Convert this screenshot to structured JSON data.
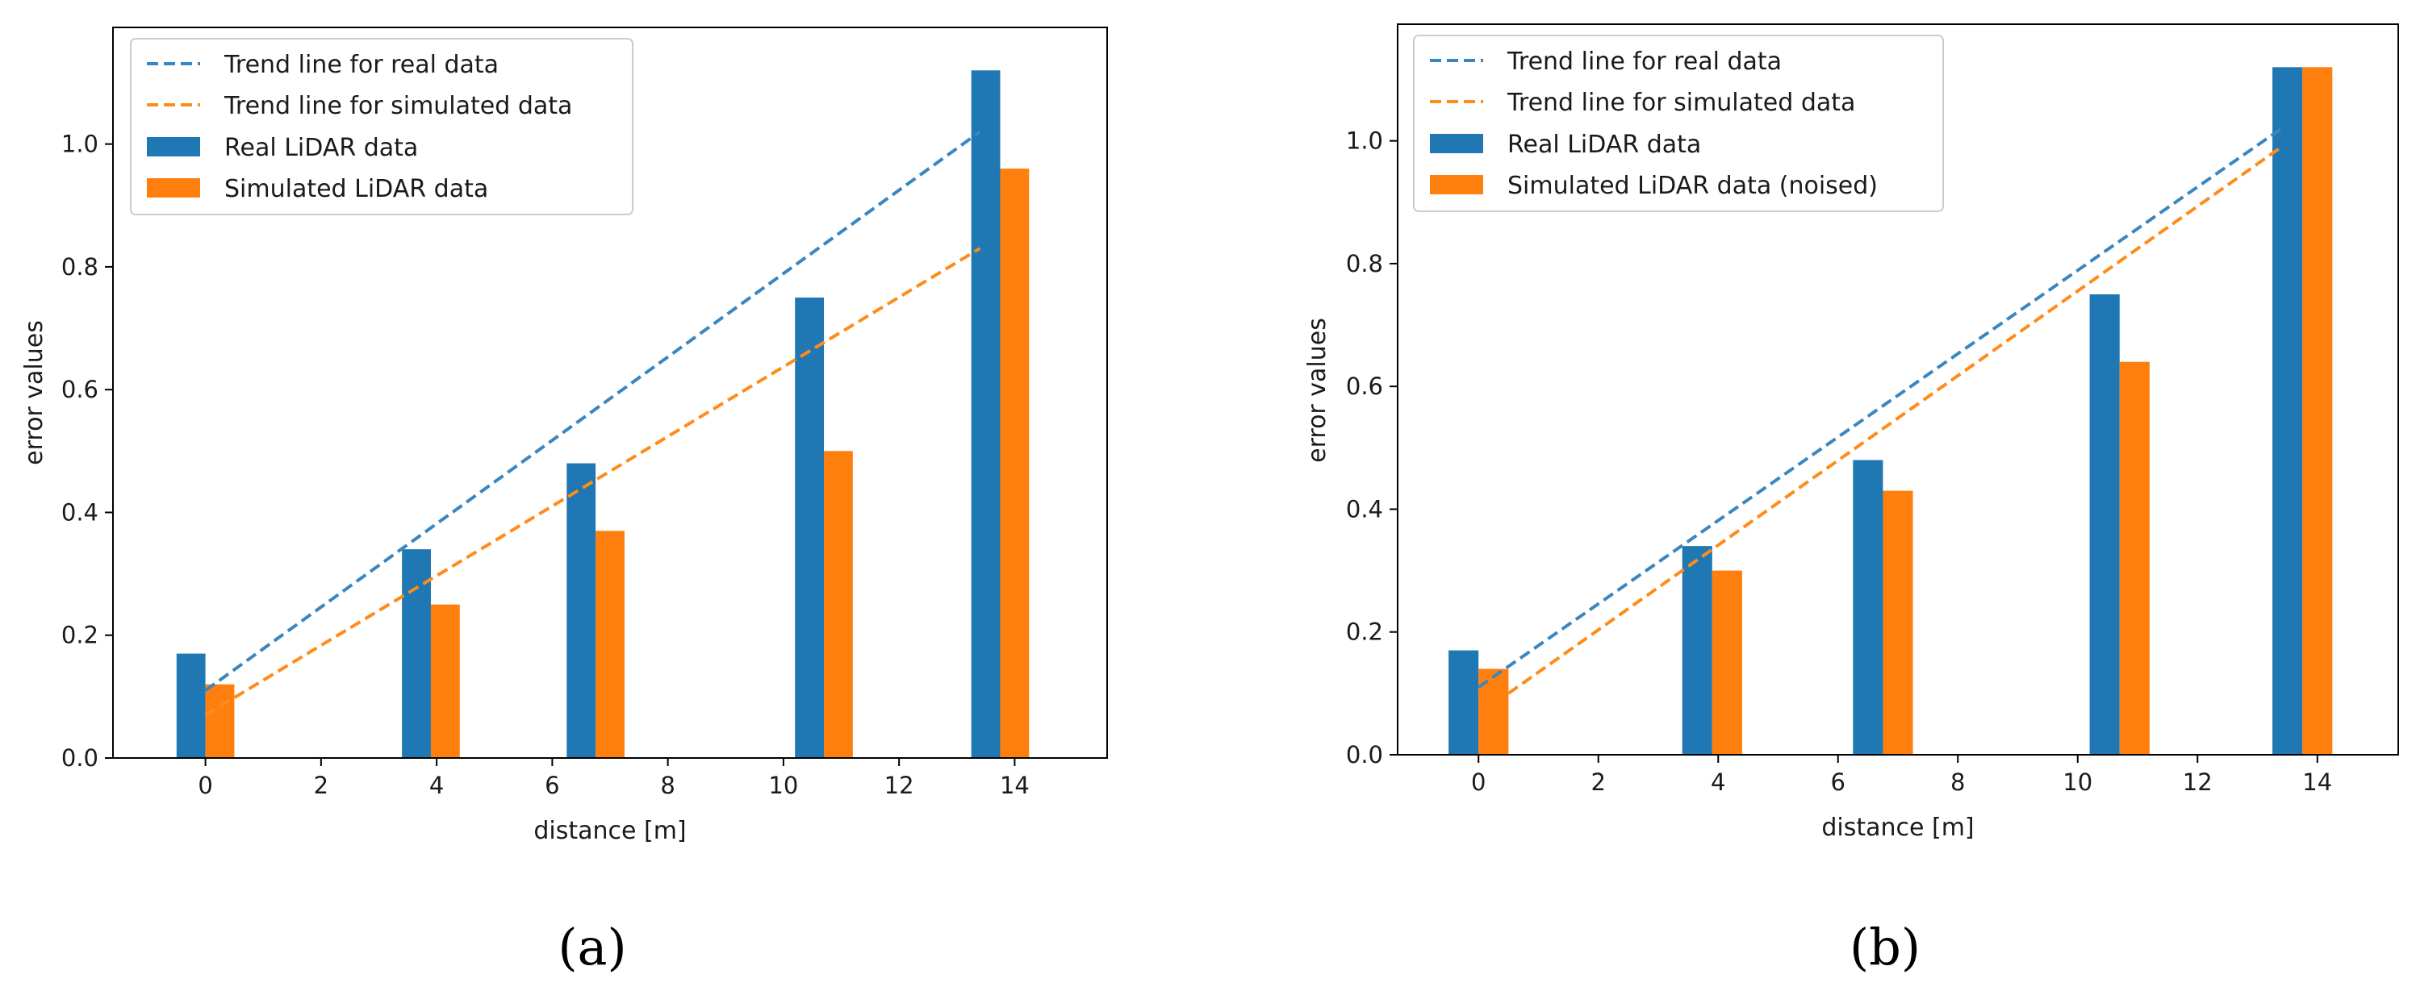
{
  "colors": {
    "real": "#1f77b4",
    "simulated": "#ff7f0e",
    "real_trend": "#3a86c0",
    "simulated_trend": "#ff8c1a",
    "axis": "#000000",
    "legend_border": "#cccccc"
  },
  "chart_data": [
    {
      "type": "bar",
      "caption": "(a)",
      "title": "",
      "xlabel": "distance [m]",
      "ylabel": "error values",
      "xlim": [
        -1.6,
        15.6
      ],
      "ylim": [
        0,
        1.19
      ],
      "xticks": [
        0,
        2,
        4,
        6,
        8,
        10,
        12,
        14
      ],
      "yticks": [
        0.0,
        0.2,
        0.4,
        0.6,
        0.8,
        1.0
      ],
      "ytick_labels": [
        "0.0",
        "0.2",
        "0.4",
        "0.6",
        "0.8",
        "1.0"
      ],
      "grid": false,
      "legend_position": "top-left",
      "bar_width": 0.5,
      "x": [
        0,
        3.9,
        6.75,
        10.7,
        13.75
      ],
      "series": [
        {
          "name": "Real LiDAR data",
          "kind": "bar",
          "offset": -0.25,
          "values": [
            0.17,
            0.34,
            0.48,
            0.75,
            1.12
          ]
        },
        {
          "name": "Simulated LiDAR data",
          "kind": "bar",
          "offset": 0.25,
          "values": [
            0.12,
            0.25,
            0.37,
            0.5,
            0.96
          ]
        }
      ],
      "trends": [
        {
          "name": "Trend line for real data",
          "x": [
            0,
            13.4
          ],
          "y": [
            0.11,
            1.02
          ]
        },
        {
          "name": "Trend line for simulated data",
          "x": [
            0,
            13.4
          ],
          "y": [
            0.07,
            0.83
          ]
        }
      ],
      "legend": [
        {
          "label": "Trend line for real data",
          "kind": "line",
          "series": "real"
        },
        {
          "label": "Trend line for simulated data",
          "kind": "line",
          "series": "simulated"
        },
        {
          "label": "Real LiDAR data",
          "kind": "patch",
          "series": "real"
        },
        {
          "label": "Simulated LiDAR data",
          "kind": "patch",
          "series": "simulated"
        }
      ]
    },
    {
      "type": "bar",
      "caption": "(b)",
      "title": "",
      "xlabel": "distance [m]",
      "ylabel": "error values",
      "xlim": [
        -1.35,
        15.35
      ],
      "ylim": [
        0,
        1.19
      ],
      "xticks": [
        0,
        2,
        4,
        6,
        8,
        10,
        12,
        14
      ],
      "yticks": [
        0.0,
        0.2,
        0.4,
        0.6,
        0.8,
        1.0
      ],
      "ytick_labels": [
        "0.0",
        "0.2",
        "0.4",
        "0.6",
        "0.8",
        "1.0"
      ],
      "grid": false,
      "legend_position": "top-left",
      "bar_width": 0.5,
      "x": [
        3.9,
        6.75,
        10.7,
        13.75,
        0
      ],
      "series": [
        {
          "name": "Real LiDAR data",
          "kind": "bar",
          "offset": -0.25,
          "values": [
            0.34,
            0.48,
            0.75,
            1.12,
            0.17
          ]
        },
        {
          "name": "Simulated LiDAR data (noised)",
          "kind": "bar",
          "offset": 0.25,
          "values": [
            0.3,
            0.43,
            0.64,
            1.12,
            0.14
          ]
        }
      ],
      "trends": [
        {
          "name": "Trend line for real data",
          "x": [
            0,
            13.4
          ],
          "y": [
            0.11,
            1.02
          ]
        },
        {
          "name": "Trend line for simulated data",
          "x": [
            0.5,
            13.4
          ],
          "y": [
            0.1,
            0.99
          ]
        }
      ],
      "legend": [
        {
          "label": "Trend line for real data",
          "kind": "line",
          "series": "real"
        },
        {
          "label": "Trend line for simulated data",
          "kind": "line",
          "series": "simulated"
        },
        {
          "label": "Real LiDAR data",
          "kind": "patch",
          "series": "real"
        },
        {
          "label": "Simulated LiDAR data (noised)",
          "kind": "patch",
          "series": "simulated"
        }
      ]
    }
  ]
}
